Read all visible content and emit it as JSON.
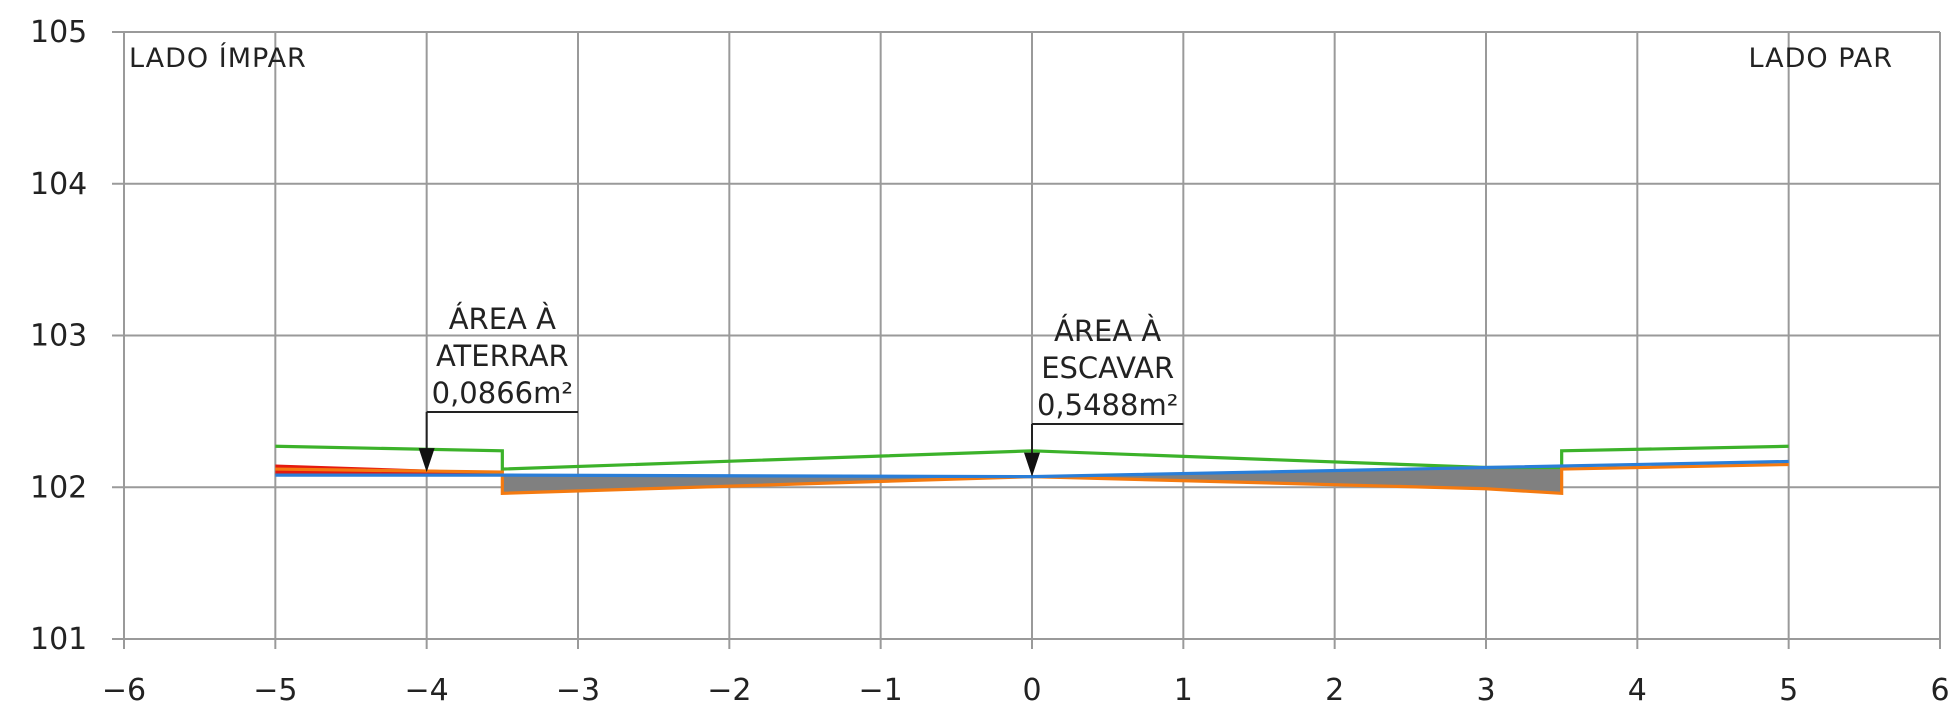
{
  "chart_data": {
    "type": "line",
    "title": "",
    "xlabel": "",
    "ylabel": "",
    "xlim": [
      -6,
      6
    ],
    "ylim": [
      101,
      105
    ],
    "xticks": [
      "−6",
      "−5",
      "−4",
      "−3",
      "−2",
      "−1",
      "0",
      "1",
      "2",
      "3",
      "4",
      "5",
      "6"
    ],
    "xtick_values": [
      -6,
      -5,
      -4,
      -3,
      -2,
      -1,
      0,
      1,
      2,
      3,
      4,
      5,
      6
    ],
    "yticks": [
      "101",
      "102",
      "103",
      "104",
      "105"
    ],
    "ytick_values": [
      101,
      102,
      103,
      104,
      105
    ],
    "grid": true,
    "side_labels": {
      "left": "LADO ÍMPAR",
      "right": "LADO PAR"
    },
    "series": [
      {
        "color": "#3cb22a",
        "points": [
          [
            -5,
            102.27
          ],
          [
            -3.5,
            102.24
          ],
          [
            -3.5,
            102.12
          ],
          [
            0,
            102.24
          ],
          [
            3,
            102.13
          ],
          [
            3.5,
            102.13
          ],
          [
            3.5,
            102.24
          ],
          [
            5,
            102.27
          ]
        ]
      },
      {
        "color": "#f47a10",
        "points": [
          [
            -5,
            102.12
          ],
          [
            -3.5,
            102.1
          ],
          [
            -3.5,
            101.96
          ],
          [
            0,
            102.07
          ],
          [
            3,
            101.99
          ],
          [
            3.5,
            101.96
          ],
          [
            3.5,
            102.12
          ],
          [
            5,
            102.15
          ]
        ]
      },
      {
        "color": "#2a7ed8",
        "points": [
          [
            -5,
            102.08
          ],
          [
            -3.5,
            102.08
          ],
          [
            0,
            102.07
          ],
          [
            3,
            102.13
          ],
          [
            5,
            102.17
          ]
        ]
      }
    ],
    "regions": [
      {
        "kind": "fill",
        "color": "#e51a0f",
        "points": [
          [
            -5,
            102.08
          ],
          [
            -5,
            102.15
          ],
          [
            -3.5,
            102.1
          ],
          [
            -3.5,
            102.08
          ]
        ]
      },
      {
        "kind": "cut",
        "color": "#808080",
        "points": [
          [
            -3.5,
            102.08
          ],
          [
            0,
            102.07
          ],
          [
            3,
            102.13
          ],
          [
            3.5,
            102.13
          ],
          [
            3.5,
            101.96
          ],
          [
            3,
            101.99
          ],
          [
            0,
            102.07
          ],
          [
            -3.5,
            101.96
          ]
        ]
      }
    ],
    "annotations": [
      {
        "lines": [
          "ÁREA À",
          "ATERRAR",
          "0,0866m²"
        ],
        "arrow_x": -4,
        "arrow_y": 102.1,
        "leader_to_x": -3
      },
      {
        "lines": [
          "ÁREA À",
          "ESCAVAR",
          "0,5488m²"
        ],
        "arrow_x": 0,
        "arrow_y": 102.07,
        "leader_to_x": 1
      }
    ]
  }
}
